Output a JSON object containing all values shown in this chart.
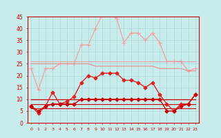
{
  "hours": [
    0,
    1,
    2,
    3,
    4,
    5,
    6,
    7,
    8,
    9,
    10,
    11,
    12,
    13,
    14,
    15,
    16,
    17,
    18,
    19,
    20,
    21,
    22,
    23
  ],
  "wind_max_gust": [
    23,
    14,
    23,
    23,
    25,
    25,
    25,
    33,
    33,
    40,
    46,
    46,
    44,
    34,
    38,
    38,
    35,
    38,
    34,
    26,
    26,
    26,
    22,
    23
  ],
  "wind_gust": [
    7,
    4,
    7,
    13,
    8,
    9,
    11,
    17,
    20,
    19,
    21,
    21,
    21,
    18,
    18,
    17,
    15,
    17,
    12,
    8,
    5,
    8,
    8,
    12
  ],
  "wind_avg": [
    7,
    5,
    7,
    8,
    8,
    8,
    8,
    10,
    10,
    10,
    10,
    10,
    10,
    10,
    10,
    10,
    10,
    10,
    10,
    5,
    5,
    7,
    8,
    12
  ],
  "line_upper1": [
    26,
    26,
    26,
    26,
    26,
    26,
    26,
    26,
    26,
    26,
    26,
    26,
    26,
    26,
    26,
    26,
    26,
    26,
    26,
    26,
    26,
    26,
    26,
    26
  ],
  "line_upper2": [
    25,
    25,
    25,
    25,
    25,
    25,
    25,
    25,
    25,
    24,
    24,
    24,
    24,
    24,
    24,
    24,
    24,
    24,
    23,
    23,
    23,
    23,
    22,
    22
  ],
  "line_mid1": [
    10,
    10,
    10,
    10,
    10,
    10,
    10,
    10,
    10,
    10,
    10,
    10,
    10,
    10,
    10,
    10,
    10,
    10,
    10,
    10,
    10,
    10,
    10,
    10
  ],
  "line_mid2": [
    8,
    8,
    8,
    8,
    8,
    8,
    8,
    8,
    8,
    8,
    8,
    8,
    8,
    8,
    8,
    8,
    8,
    8,
    8,
    8,
    8,
    8,
    8,
    8
  ],
  "line_low": [
    6,
    6,
    6,
    6,
    6,
    6,
    6,
    6,
    6,
    6,
    6,
    6,
    6,
    6,
    6,
    6,
    6,
    6,
    6,
    6,
    6,
    6,
    6,
    6
  ],
  "color_light_pink": "#f4a0a0",
  "color_mid_pink": "#e88888",
  "color_dark_red": "#cc0000",
  "color_red2": "#dd2222",
  "bg_color": "#c8ecec",
  "grid_color": "#aad8d8",
  "text_color": "#cc0000",
  "ylim_min": 0,
  "ylim_max": 45,
  "ytick_step": 5
}
